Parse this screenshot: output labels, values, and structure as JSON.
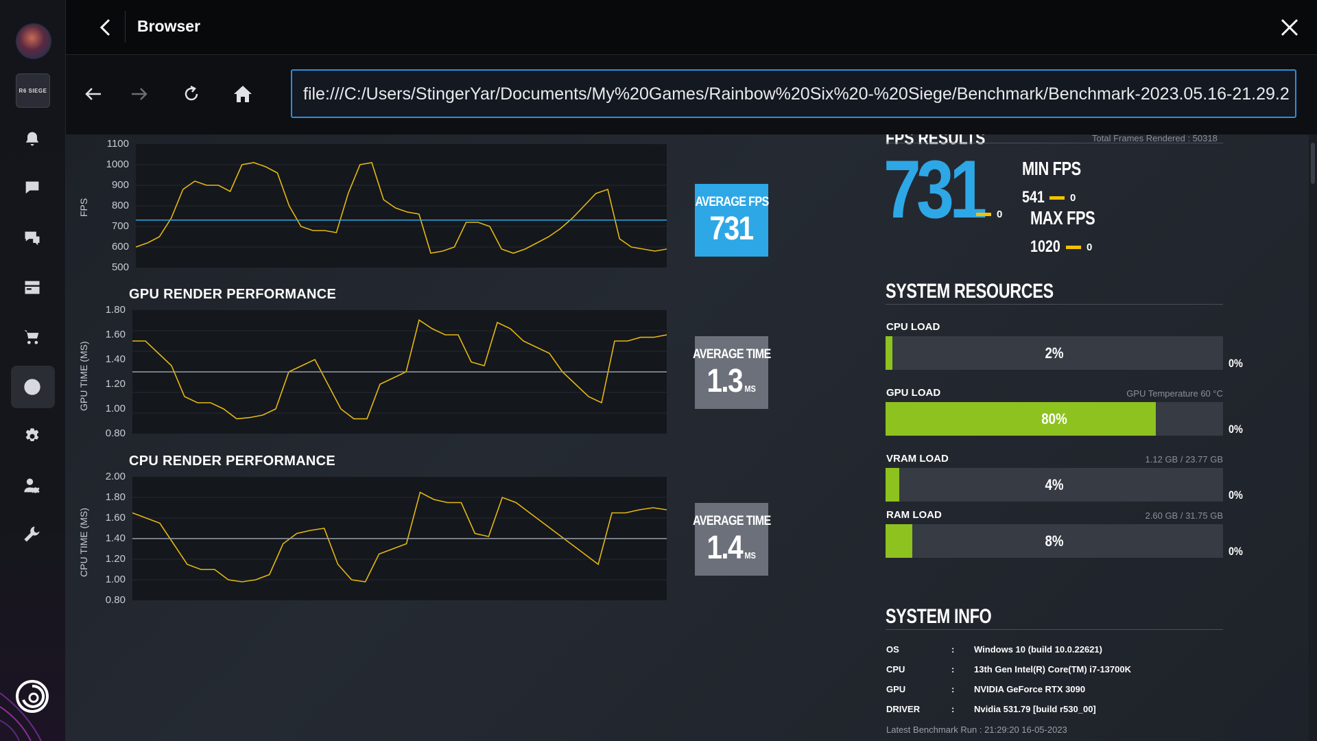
{
  "window": {
    "title": "Browser"
  },
  "sidebar": {
    "game_tile": "R6 SIEGE",
    "items": [
      "notifications",
      "chat",
      "friends",
      "library",
      "store",
      "browser",
      "settings",
      "account",
      "tools"
    ]
  },
  "browser": {
    "url": "file:///C:/Users/StingerYar/Documents/My%20Games/Rainbow%20Six%20-%20Siege/Benchmark/Benchmark-2023.05.16-21.29.2"
  },
  "charts": {
    "fps": {
      "ylabel": "FPS",
      "yticks": [
        "1100",
        "1000",
        "900",
        "800",
        "700",
        "600",
        "500"
      ],
      "avg_label": "AVERAGE FPS",
      "avg_value": "731"
    },
    "gpu": {
      "title": "GPU RENDER PERFORMANCE",
      "ylabel": "GPU TIME (MS)",
      "yticks": [
        "1.80",
        "1.60",
        "1.40",
        "1.20",
        "1.00",
        "0.80"
      ],
      "avg_label": "AVERAGE TIME",
      "avg_value": "1.3",
      "avg_unit": "MS"
    },
    "cpu": {
      "title": "CPU RENDER PERFORMANCE",
      "ylabel": "CPU TIME (MS)",
      "yticks": [
        "2.00",
        "1.80",
        "1.60",
        "1.40",
        "1.20",
        "1.00",
        "0.80"
      ],
      "avg_label": "AVERAGE TIME",
      "avg_value": "1.4",
      "avg_unit": "MS"
    }
  },
  "chart_data": [
    {
      "type": "line",
      "ylabel": "FPS",
      "ylim": [
        500,
        1100
      ],
      "average": 731,
      "series": [
        {
          "values": [
            600,
            620,
            650,
            740,
            880,
            920,
            900,
            900,
            870,
            1000,
            1010,
            990,
            960,
            800,
            700,
            680,
            680,
            670,
            860,
            1000,
            1010,
            830,
            790,
            770,
            760,
            570,
            580,
            600,
            720,
            720,
            700,
            590,
            570,
            590,
            620,
            650,
            690,
            740,
            800,
            860,
            880,
            640,
            600,
            590,
            580,
            590
          ]
        }
      ]
    },
    {
      "type": "line",
      "ylabel": "GPU TIME (MS)",
      "ylim": [
        0.8,
        1.8
      ],
      "average": 1.3,
      "series": [
        {
          "values": [
            1.55,
            1.55,
            1.45,
            1.35,
            1.1,
            1.05,
            1.05,
            1.0,
            0.92,
            0.93,
            0.95,
            1.0,
            1.3,
            1.35,
            1.4,
            1.2,
            1.0,
            0.92,
            0.92,
            1.2,
            1.25,
            1.3,
            1.72,
            1.65,
            1.6,
            1.6,
            1.38,
            1.35,
            1.7,
            1.65,
            1.55,
            1.5,
            1.45,
            1.3,
            1.2,
            1.1,
            1.05,
            1.55,
            1.55,
            1.58,
            1.58,
            1.6
          ]
        }
      ]
    },
    {
      "type": "line",
      "ylabel": "CPU TIME (MS)",
      "ylim": [
        0.8,
        2.0
      ],
      "average": 1.4,
      "series": [
        {
          "values": [
            1.65,
            1.6,
            1.55,
            1.35,
            1.15,
            1.1,
            1.1,
            1.0,
            0.98,
            1.0,
            1.05,
            1.35,
            1.45,
            1.48,
            1.5,
            1.15,
            1.0,
            0.98,
            1.25,
            1.3,
            1.35,
            1.85,
            1.78,
            1.75,
            1.75,
            1.45,
            1.42,
            1.8,
            1.75,
            1.65,
            1.55,
            1.45,
            1.35,
            1.25,
            1.15,
            1.65,
            1.65,
            1.68,
            1.7,
            1.68
          ]
        }
      ]
    }
  ],
  "fps_results": {
    "header": "FPS RESULTS",
    "sub": "Total Frames Rendered : 50318",
    "average": "731",
    "average_delta": "0",
    "min_label": "MIN FPS",
    "min_value": "541",
    "min_delta": "0",
    "max_label": "MAX FPS",
    "max_value": "1020",
    "max_delta": "0"
  },
  "system_resources": {
    "header": "SYSTEM RESOURCES",
    "items": [
      {
        "label": "CPU LOAD",
        "info": "",
        "pct_text": "2%",
        "pct": 2,
        "delta": "0%",
        "color": "#8dc21f"
      },
      {
        "label": "GPU LOAD",
        "info": "GPU Temperature 60 °C",
        "pct_text": "80%",
        "pct": 80,
        "delta": "0%",
        "color": "#8dc21f"
      },
      {
        "label": "VRAM LOAD",
        "info": "1.12 GB / 23.77 GB",
        "pct_text": "4%",
        "pct": 4,
        "delta": "0%",
        "color": "#8dc21f"
      },
      {
        "label": "RAM LOAD",
        "info": "2.60 GB / 31.75 GB",
        "pct_text": "8%",
        "pct": 8,
        "delta": "0%",
        "color": "#8dc21f"
      }
    ]
  },
  "system_info": {
    "header": "SYSTEM INFO",
    "rows": [
      {
        "key": "OS",
        "value": "Windows 10 (build 10.0.22621)"
      },
      {
        "key": "CPU",
        "value": "13th Gen Intel(R) Core(TM) i7-13700K"
      },
      {
        "key": "GPU",
        "value": "NVIDIA GeForce RTX 3090"
      },
      {
        "key": "DRIVER",
        "value": "Nvidia 531.79 [build r530_00]"
      }
    ],
    "latest": "Latest Benchmark Run : 21:29:20 16-05-2023"
  },
  "colors": {
    "accent": "#2ea7e6",
    "line": "#e5b814",
    "fill_green": "#8dc21f",
    "delta_yellow": "#f2c200"
  }
}
